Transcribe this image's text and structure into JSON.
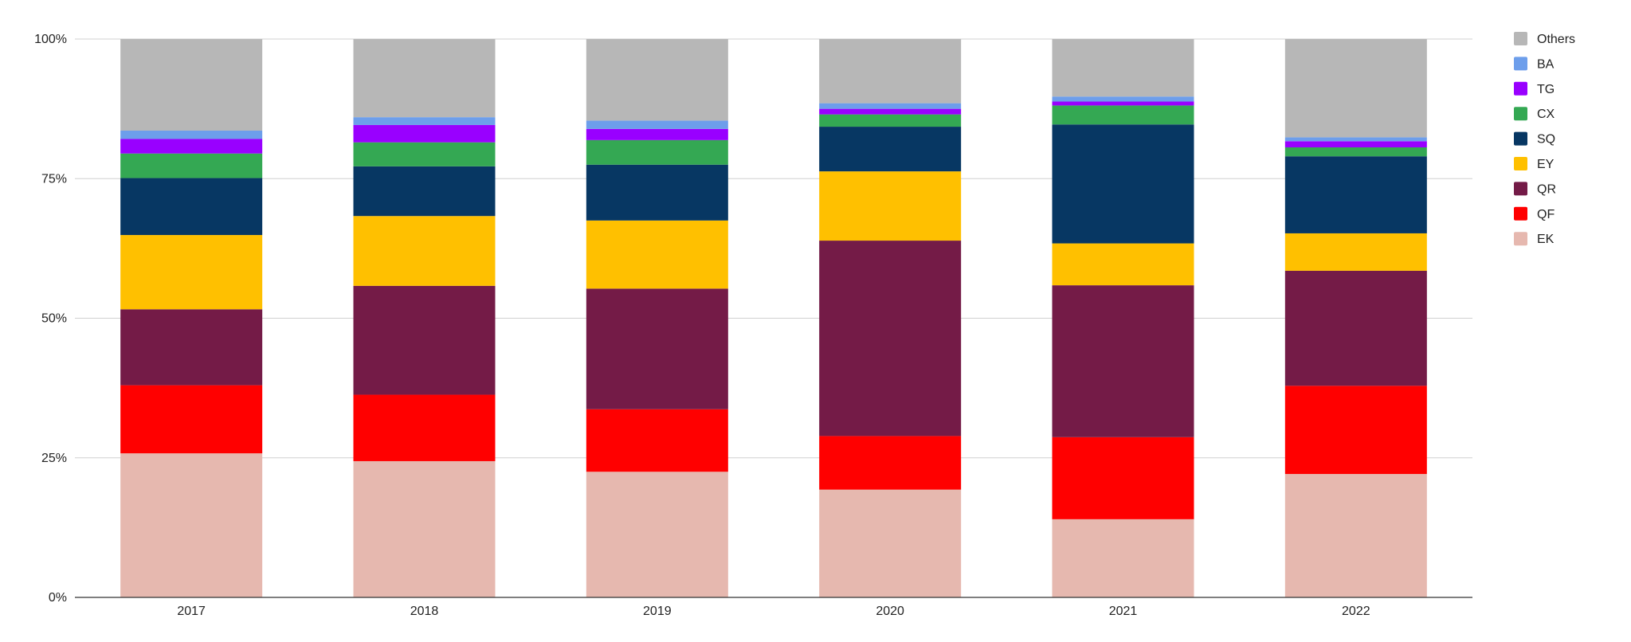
{
  "chart_data": {
    "type": "bar",
    "stacked": true,
    "normalized": true,
    "title": "",
    "xlabel": "",
    "ylabel": "",
    "categories": [
      "2017",
      "2018",
      "2019",
      "2020",
      "2021",
      "2022"
    ],
    "y_ticks": [
      "0%",
      "25%",
      "50%",
      "75%",
      "100%"
    ],
    "y_tick_values": [
      0,
      25,
      50,
      75,
      100
    ],
    "ylim": [
      0,
      100
    ],
    "grid": true,
    "legend_position": "right",
    "series": [
      {
        "name": "EK",
        "color": "#e6b8af",
        "values": [
          25.8,
          24.4,
          22.5,
          19.3,
          14.0,
          22.1
        ]
      },
      {
        "name": "QF",
        "color": "#ff0000",
        "values": [
          12.2,
          11.9,
          11.2,
          9.6,
          14.7,
          15.8
        ]
      },
      {
        "name": "QR",
        "color": "#741b47",
        "values": [
          13.6,
          19.5,
          21.6,
          35.0,
          27.2,
          20.6
        ]
      },
      {
        "name": "EY",
        "color": "#ffc000",
        "values": [
          13.3,
          12.5,
          12.2,
          12.4,
          7.5,
          6.7
        ]
      },
      {
        "name": "SQ",
        "color": "#073763",
        "values": [
          10.2,
          8.9,
          10.0,
          8.0,
          21.3,
          13.8
        ]
      },
      {
        "name": "CX",
        "color": "#34a853",
        "values": [
          4.4,
          4.3,
          4.4,
          2.2,
          3.4,
          1.6
        ]
      },
      {
        "name": "TG",
        "color": "#9900ff",
        "values": [
          2.6,
          3.1,
          2.0,
          1.0,
          0.7,
          1.1
        ]
      },
      {
        "name": "BA",
        "color": "#6d9eeb",
        "values": [
          1.5,
          1.4,
          1.5,
          1.0,
          0.9,
          0.7
        ]
      },
      {
        "name": "Others",
        "color": "#b7b7b7",
        "values": [
          16.4,
          14.0,
          14.6,
          11.5,
          10.3,
          17.6
        ]
      }
    ],
    "legend_order": [
      "Others",
      "BA",
      "TG",
      "CX",
      "SQ",
      "EY",
      "QR",
      "QF",
      "EK"
    ]
  }
}
